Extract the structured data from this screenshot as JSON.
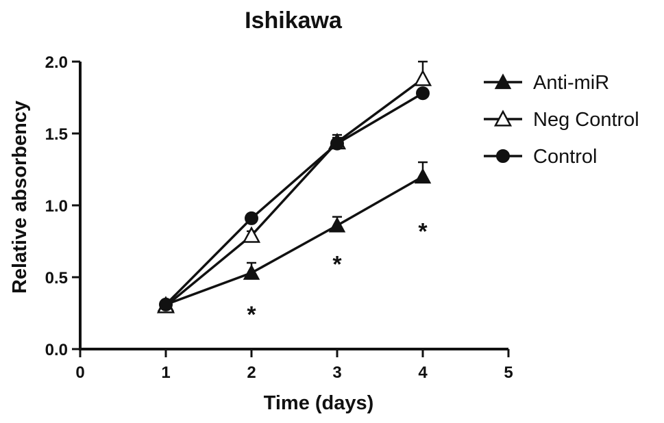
{
  "chart_data": {
    "type": "line",
    "title": "Ishikawa",
    "xlabel": "Time (days)",
    "ylabel": "Relative absorbency",
    "xlim": [
      0,
      5
    ],
    "ylim": [
      0,
      2.0
    ],
    "xticks": [
      "0",
      "1",
      "2",
      "3",
      "4",
      "5"
    ],
    "yticks": [
      "0.0",
      "0.5",
      "1.0",
      "1.5",
      "2.0"
    ],
    "x": [
      1,
      2,
      3,
      4
    ],
    "grid": false,
    "legend_position": "right",
    "series": [
      {
        "name": "Anti-miR",
        "marker": "filled-triangle",
        "values": [
          0.31,
          0.53,
          0.86,
          1.2
        ],
        "errors": [
          0.02,
          0.07,
          0.06,
          0.1
        ]
      },
      {
        "name": "Neg Control",
        "marker": "open-triangle",
        "values": [
          0.3,
          0.79,
          1.44,
          1.88
        ],
        "errors": [
          0.02,
          0.03,
          0.05,
          0.12
        ]
      },
      {
        "name": "Control",
        "marker": "filled-circle",
        "values": [
          0.31,
          0.91,
          1.43,
          1.78
        ],
        "errors": [
          0.02,
          0.03,
          0.04,
          0.03
        ]
      }
    ],
    "annotations": [
      {
        "text": "*",
        "x": 2,
        "y": 0.28
      },
      {
        "text": "*",
        "x": 3,
        "y": 0.63
      },
      {
        "text": "*",
        "x": 4,
        "y": 0.86
      }
    ],
    "colors": {
      "line": "#111111",
      "background": "#ffffff"
    }
  }
}
